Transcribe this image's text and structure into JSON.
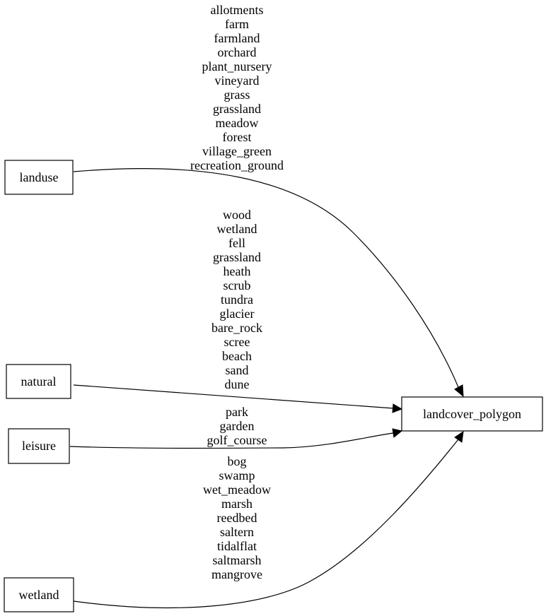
{
  "nodes": {
    "landuse": "landuse",
    "natural": "natural",
    "leisure": "leisure",
    "wetland": "wetland",
    "target": "landcover_polygon"
  },
  "edges": [
    {
      "from": "landuse",
      "to": "landcover_polygon",
      "labels": [
        "allotments",
        "farm",
        "farmland",
        "orchard",
        "plant_nursery",
        "vineyard",
        "grass",
        "grassland",
        "meadow",
        "forest",
        "village_green",
        "recreation_ground"
      ]
    },
    {
      "from": "natural",
      "to": "landcover_polygon",
      "labels": [
        "wood",
        "wetland",
        "fell",
        "grassland",
        "heath",
        "scrub",
        "tundra",
        "glacier",
        "bare_rock",
        "scree",
        "beach",
        "sand",
        "dune"
      ]
    },
    {
      "from": "leisure",
      "to": "landcover_polygon",
      "labels": [
        "park",
        "garden",
        "golf_course"
      ]
    },
    {
      "from": "wetland",
      "to": "landcover_polygon",
      "labels": [
        "bog",
        "swamp",
        "wet_meadow",
        "marsh",
        "reedbed",
        "saltern",
        "tidalflat",
        "saltmarsh",
        "mangrove"
      ]
    }
  ]
}
